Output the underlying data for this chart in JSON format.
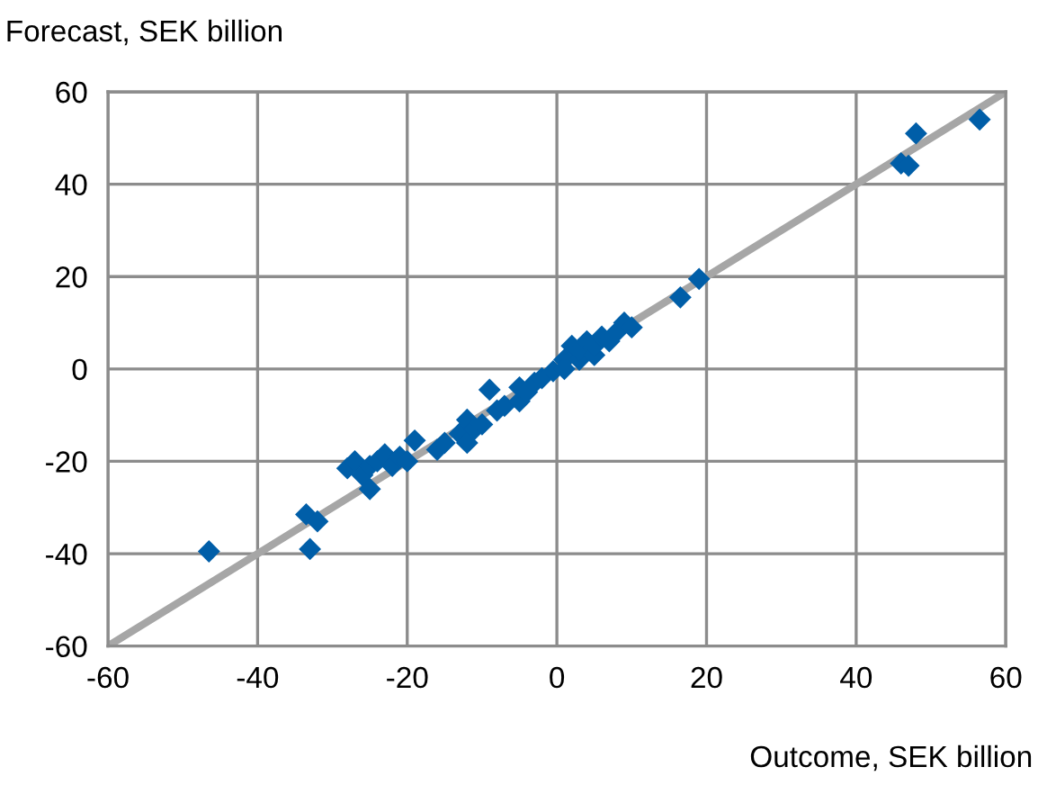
{
  "chart_data": {
    "type": "scatter",
    "xlabel": "Outcome, SEK billion",
    "ylabel": "Forecast, SEK billion",
    "xlim": [
      -60,
      60
    ],
    "ylim": [
      -60,
      60
    ],
    "xticks": [
      -60,
      -40,
      -20,
      0,
      20,
      40,
      60
    ],
    "yticks": [
      -60,
      -40,
      -20,
      0,
      20,
      40,
      60
    ],
    "grid": true,
    "series": [
      {
        "type": "line",
        "color": "#a6a6a6",
        "marker": "none",
        "x": [
          -60,
          60
        ],
        "values": [
          -60,
          60
        ]
      },
      {
        "color": "#005ea8",
        "marker": "diamond",
        "x": [
          -46.5,
          -33,
          -33.5,
          -32,
          -28,
          -27,
          -26,
          -25,
          -25,
          -24,
          -23,
          -22,
          -21,
          -20,
          -19,
          -16,
          -15,
          -13,
          -12,
          -12,
          -11,
          -10,
          -9,
          -8,
          -7,
          -5,
          -5,
          -4,
          -3,
          -2,
          -0.5,
          1,
          1,
          2,
          3,
          3,
          4,
          5,
          5,
          6,
          7,
          8,
          9,
          10,
          16.5,
          19,
          46,
          47,
          48,
          56.5
        ],
        "values": [
          -39.5,
          -39,
          -31.5,
          -33,
          -21.5,
          -20,
          -23,
          -26,
          -21,
          -20,
          -18.5,
          -21,
          -19,
          -20,
          -15.5,
          -17.5,
          -16,
          -14,
          -16,
          -11,
          -13,
          -12,
          -4.5,
          -9,
          -8,
          -7,
          -4,
          -5,
          -3,
          -2,
          -0.5,
          2,
          0,
          5,
          2,
          4,
          6,
          3,
          5,
          7,
          6,
          8,
          10,
          9,
          15.5,
          19.5,
          44.5,
          44,
          51,
          54
        ]
      }
    ]
  }
}
